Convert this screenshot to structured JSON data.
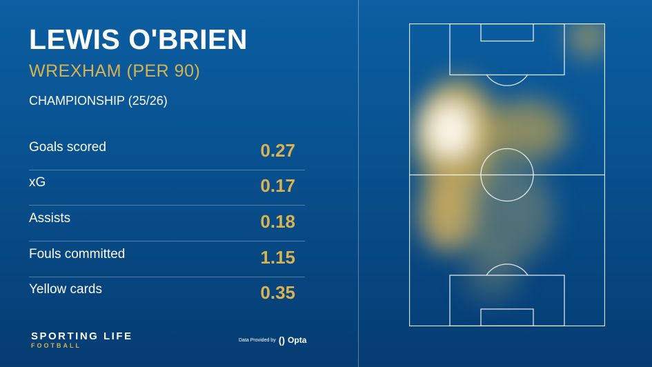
{
  "player": {
    "name": "LEWIS O'BRIEN",
    "team": "WREXHAM (PER 90)",
    "competition": "CHAMPIONSHIP (25/26)"
  },
  "stats": [
    {
      "label": "Goals scored",
      "value": "0.27"
    },
    {
      "label": "xG",
      "value": "0.17"
    },
    {
      "label": "Assists",
      "value": "0.18"
    },
    {
      "label": "Fouls committed",
      "value": "1.15"
    },
    {
      "label": "Yellow cards",
      "value": "0.35"
    }
  ],
  "footer": {
    "brand": "SPORTING LIFE",
    "brand_sub": "FOOTBALL",
    "data_provided": "Data Provided by",
    "provider": "Opta"
  },
  "colors": {
    "accent": "#d9b34f",
    "background": "#08508e"
  }
}
